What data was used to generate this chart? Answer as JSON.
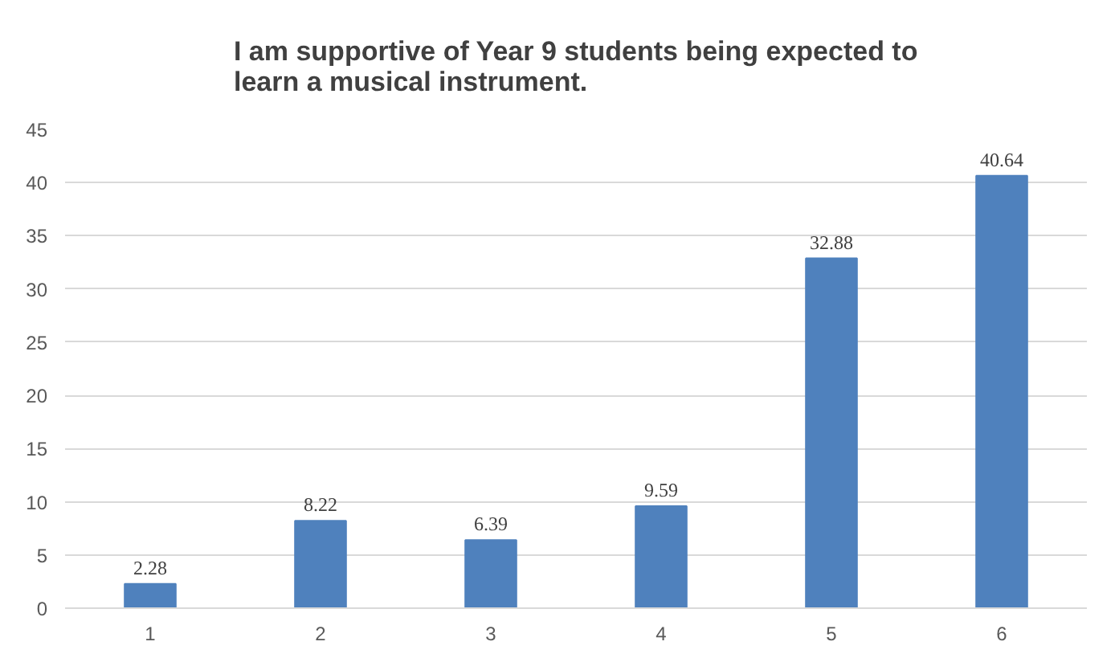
{
  "chart_data": {
    "type": "bar",
    "title": "I am supportive of Year 9 students being expected to learn a musical  instrument.",
    "categories": [
      "1",
      "2",
      "3",
      "4",
      "5",
      "6"
    ],
    "values": [
      2.28,
      8.22,
      6.39,
      9.59,
      32.88,
      40.64
    ],
    "color": "#4f81bd",
    "ylim": [
      0,
      45
    ],
    "yticks": [
      0,
      5,
      10,
      15,
      20,
      25,
      30,
      35,
      40,
      45
    ],
    "grid": "y",
    "data_labels": true
  }
}
